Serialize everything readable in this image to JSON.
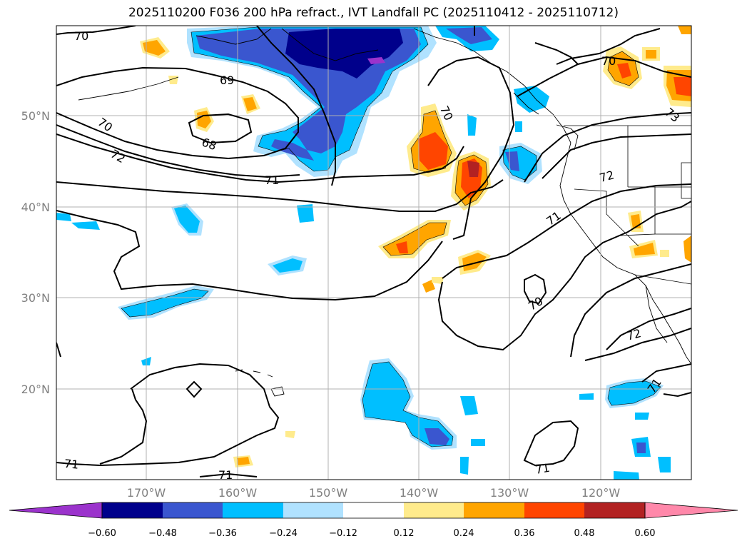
{
  "title": "2025110200 F036 200 hPa refract., IVT Landfall PC (2025110412 - 2025110712)",
  "lat_labels": [
    "50°N",
    "40°N",
    "30°N",
    "20°N"
  ],
  "lon_labels": [
    "170°W",
    "160°W",
    "150°W",
    "140°W",
    "130°W",
    "120°W"
  ],
  "contour_labels": [
    "70",
    "69",
    "70",
    "68",
    "72",
    "71",
    "70",
    "70",
    "72",
    "73",
    "71",
    "70",
    "72",
    "71",
    "71",
    "71",
    "71"
  ],
  "colorbar": {
    "colors": [
      "#9b33cc",
      "#00008b",
      "#3a56cf",
      "#00bfff",
      "#b0e2ff",
      "#ffffff",
      "#ffeb8c",
      "#ffa500",
      "#ff4500",
      "#b22222",
      "#ff88aa"
    ],
    "tick_labels": [
      "−0.60",
      "−0.48",
      "−0.36",
      "−0.24",
      "−0.12",
      "0.12",
      "0.24",
      "0.36",
      "0.48",
      "0.60"
    ]
  }
}
